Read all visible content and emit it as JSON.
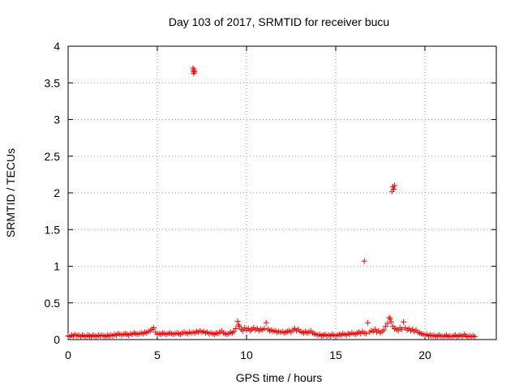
{
  "chart_data": {
    "type": "scatter",
    "title": "Day 103 of 2017, SRMTID for receiver bucu",
    "xlabel": "GPS time / hours",
    "ylabel": "SRMTID / TECUs",
    "xlim": [
      0,
      24
    ],
    "ylim": [
      0,
      4
    ],
    "x_ticks": [
      0,
      5,
      10,
      15,
      20
    ],
    "x_tick_labels": [
      "0",
      "5",
      "10",
      "15",
      "20"
    ],
    "y_ticks": [
      0,
      0.5,
      1,
      1.5,
      2,
      2.5,
      3,
      3.5,
      4
    ],
    "y_tick_labels": [
      "0",
      "0.5",
      "1",
      "1.5",
      "2",
      "2.5",
      "3",
      "3.5",
      "4"
    ],
    "grid": true,
    "marker": "+",
    "color": "#ff0000",
    "series": [
      {
        "points": [
          [
            0.0,
            0.05
          ],
          [
            0.1,
            0.04
          ],
          [
            0.2,
            0.06
          ],
          [
            0.3,
            0.05
          ],
          [
            0.4,
            0.07
          ],
          [
            0.5,
            0.05
          ],
          [
            0.6,
            0.06
          ],
          [
            0.7,
            0.04
          ],
          [
            0.8,
            0.06
          ],
          [
            0.9,
            0.05
          ],
          [
            1.0,
            0.04
          ],
          [
            1.1,
            0.06
          ],
          [
            1.2,
            0.05
          ],
          [
            1.3,
            0.04
          ],
          [
            1.4,
            0.06
          ],
          [
            1.5,
            0.05
          ],
          [
            1.6,
            0.04
          ],
          [
            1.7,
            0.06
          ],
          [
            1.8,
            0.05
          ],
          [
            1.9,
            0.06
          ],
          [
            2.0,
            0.05
          ],
          [
            2.1,
            0.04
          ],
          [
            2.2,
            0.06
          ],
          [
            2.3,
            0.05
          ],
          [
            2.4,
            0.06
          ],
          [
            2.5,
            0.05
          ],
          [
            2.6,
            0.07
          ],
          [
            2.7,
            0.06
          ],
          [
            2.8,
            0.08
          ],
          [
            2.9,
            0.07
          ],
          [
            3.0,
            0.06
          ],
          [
            3.1,
            0.07
          ],
          [
            3.2,
            0.08
          ],
          [
            3.3,
            0.07
          ],
          [
            3.4,
            0.06
          ],
          [
            3.5,
            0.08
          ],
          [
            3.6,
            0.07
          ],
          [
            3.7,
            0.09
          ],
          [
            3.8,
            0.08
          ],
          [
            3.9,
            0.07
          ],
          [
            4.0,
            0.08
          ],
          [
            4.1,
            0.09
          ],
          [
            4.2,
            0.08
          ],
          [
            4.3,
            0.1
          ],
          [
            4.4,
            0.09
          ],
          [
            4.5,
            0.11
          ],
          [
            4.6,
            0.12
          ],
          [
            4.7,
            0.14
          ],
          [
            4.8,
            0.16
          ],
          [
            4.9,
            0.1
          ],
          [
            5.0,
            0.07
          ],
          [
            5.1,
            0.08
          ],
          [
            5.2,
            0.07
          ],
          [
            5.3,
            0.09
          ],
          [
            5.4,
            0.08
          ],
          [
            5.5,
            0.07
          ],
          [
            5.6,
            0.08
          ],
          [
            5.7,
            0.09
          ],
          [
            5.8,
            0.08
          ],
          [
            5.9,
            0.07
          ],
          [
            6.0,
            0.08
          ],
          [
            6.1,
            0.09
          ],
          [
            6.2,
            0.08
          ],
          [
            6.3,
            0.07
          ],
          [
            6.4,
            0.09
          ],
          [
            6.5,
            0.1
          ],
          [
            6.6,
            0.09
          ],
          [
            6.7,
            0.08
          ],
          [
            6.8,
            0.1
          ],
          [
            6.9,
            0.09
          ],
          [
            7.0,
            3.7
          ],
          [
            7.02,
            3.66
          ],
          [
            7.04,
            3.63
          ],
          [
            7.06,
            3.68
          ],
          [
            7.08,
            3.65
          ],
          [
            7.0,
            0.1
          ],
          [
            7.1,
            0.09
          ],
          [
            7.2,
            0.11
          ],
          [
            7.3,
            0.1
          ],
          [
            7.4,
            0.12
          ],
          [
            7.5,
            0.1
          ],
          [
            7.6,
            0.11
          ],
          [
            7.7,
            0.09
          ],
          [
            7.8,
            0.1
          ],
          [
            7.9,
            0.08
          ],
          [
            8.0,
            0.09
          ],
          [
            8.1,
            0.08
          ],
          [
            8.2,
            0.07
          ],
          [
            8.3,
            0.09
          ],
          [
            8.4,
            0.08
          ],
          [
            8.5,
            0.1
          ],
          [
            8.6,
            0.12
          ],
          [
            8.7,
            0.09
          ],
          [
            8.8,
            0.08
          ],
          [
            8.9,
            0.07
          ],
          [
            9.0,
            0.08
          ],
          [
            9.1,
            0.1
          ],
          [
            9.2,
            0.09
          ],
          [
            9.3,
            0.11
          ],
          [
            9.4,
            0.15
          ],
          [
            9.5,
            0.25
          ],
          [
            9.55,
            0.2
          ],
          [
            9.6,
            0.18
          ],
          [
            9.7,
            0.14
          ],
          [
            9.8,
            0.12
          ],
          [
            9.9,
            0.16
          ],
          [
            10.0,
            0.13
          ],
          [
            10.1,
            0.15
          ],
          [
            10.2,
            0.12
          ],
          [
            10.3,
            0.14
          ],
          [
            10.4,
            0.16
          ],
          [
            10.5,
            0.13
          ],
          [
            10.6,
            0.15
          ],
          [
            10.7,
            0.12
          ],
          [
            10.8,
            0.14
          ],
          [
            10.9,
            0.13
          ],
          [
            11.0,
            0.15
          ],
          [
            11.1,
            0.23
          ],
          [
            11.2,
            0.14
          ],
          [
            11.3,
            0.12
          ],
          [
            11.4,
            0.13
          ],
          [
            11.5,
            0.11
          ],
          [
            11.6,
            0.12
          ],
          [
            11.7,
            0.1
          ],
          [
            11.8,
            0.11
          ],
          [
            11.9,
            0.1
          ],
          [
            12.0,
            0.11
          ],
          [
            12.1,
            0.09
          ],
          [
            12.2,
            0.1
          ],
          [
            12.3,
            0.11
          ],
          [
            12.4,
            0.12
          ],
          [
            12.5,
            0.1
          ],
          [
            12.6,
            0.13
          ],
          [
            12.7,
            0.15
          ],
          [
            12.8,
            0.12
          ],
          [
            12.9,
            0.14
          ],
          [
            13.0,
            0.11
          ],
          [
            13.1,
            0.1
          ],
          [
            13.2,
            0.09
          ],
          [
            13.3,
            0.11
          ],
          [
            13.4,
            0.09
          ],
          [
            13.5,
            0.1
          ],
          [
            13.6,
            0.12
          ],
          [
            13.7,
            0.09
          ],
          [
            13.8,
            0.08
          ],
          [
            13.9,
            0.07
          ],
          [
            14.0,
            0.06
          ],
          [
            14.1,
            0.07
          ],
          [
            14.2,
            0.05
          ],
          [
            14.3,
            0.06
          ],
          [
            14.4,
            0.07
          ],
          [
            14.5,
            0.05
          ],
          [
            14.6,
            0.06
          ],
          [
            14.7,
            0.05
          ],
          [
            14.8,
            0.07
          ],
          [
            14.9,
            0.06
          ],
          [
            15.0,
            0.05
          ],
          [
            15.1,
            0.06
          ],
          [
            15.2,
            0.07
          ],
          [
            15.3,
            0.06
          ],
          [
            15.4,
            0.08
          ],
          [
            15.5,
            0.07
          ],
          [
            15.6,
            0.06
          ],
          [
            15.7,
            0.08
          ],
          [
            15.8,
            0.07
          ],
          [
            15.9,
            0.09
          ],
          [
            16.0,
            0.08
          ],
          [
            16.1,
            0.07
          ],
          [
            16.2,
            0.09
          ],
          [
            16.3,
            0.1
          ],
          [
            16.4,
            0.08
          ],
          [
            16.5,
            0.11
          ],
          [
            16.6,
            1.07
          ],
          [
            16.6,
            0.09
          ],
          [
            16.7,
            0.08
          ],
          [
            16.8,
            0.23
          ],
          [
            16.9,
            0.1
          ],
          [
            17.0,
            0.12
          ],
          [
            17.1,
            0.11
          ],
          [
            17.2,
            0.14
          ],
          [
            17.3,
            0.1
          ],
          [
            17.4,
            0.12
          ],
          [
            17.5,
            0.09
          ],
          [
            17.6,
            0.11
          ],
          [
            17.7,
            0.13
          ],
          [
            17.8,
            0.18
          ],
          [
            17.9,
            0.22
          ],
          [
            18.0,
            0.3
          ],
          [
            18.05,
            0.28
          ],
          [
            18.1,
            0.24
          ],
          [
            18.15,
            2.02
          ],
          [
            18.2,
            2.08
          ],
          [
            18.25,
            2.05
          ],
          [
            18.3,
            2.1
          ],
          [
            18.2,
            0.18
          ],
          [
            18.3,
            0.15
          ],
          [
            18.4,
            0.14
          ],
          [
            18.5,
            0.12
          ],
          [
            18.6,
            0.16
          ],
          [
            18.7,
            0.14
          ],
          [
            18.8,
            0.24
          ],
          [
            18.9,
            0.16
          ],
          [
            19.0,
            0.13
          ],
          [
            19.1,
            0.15
          ],
          [
            19.2,
            0.12
          ],
          [
            19.3,
            0.14
          ],
          [
            19.4,
            0.11
          ],
          [
            19.5,
            0.13
          ],
          [
            19.6,
            0.1
          ],
          [
            19.7,
            0.09
          ],
          [
            19.8,
            0.08
          ],
          [
            19.9,
            0.07
          ],
          [
            20.0,
            0.06
          ],
          [
            20.1,
            0.07
          ],
          [
            20.2,
            0.05
          ],
          [
            20.3,
            0.06
          ],
          [
            20.4,
            0.05
          ],
          [
            20.5,
            0.06
          ],
          [
            20.6,
            0.04
          ],
          [
            20.7,
            0.05
          ],
          [
            20.8,
            0.06
          ],
          [
            20.9,
            0.05
          ],
          [
            21.0,
            0.04
          ],
          [
            21.1,
            0.05
          ],
          [
            21.2,
            0.06
          ],
          [
            21.3,
            0.04
          ],
          [
            21.4,
            0.05
          ],
          [
            21.5,
            0.04
          ],
          [
            21.6,
            0.05
          ],
          [
            21.7,
            0.06
          ],
          [
            21.8,
            0.04
          ],
          [
            21.9,
            0.05
          ],
          [
            22.0,
            0.06
          ],
          [
            22.1,
            0.04
          ],
          [
            22.2,
            0.07
          ],
          [
            22.3,
            0.05
          ],
          [
            22.4,
            0.04
          ],
          [
            22.5,
            0.05
          ],
          [
            22.6,
            0.04
          ],
          [
            22.7,
            0.05
          ],
          [
            22.8,
            0.04
          ]
        ]
      }
    ]
  }
}
